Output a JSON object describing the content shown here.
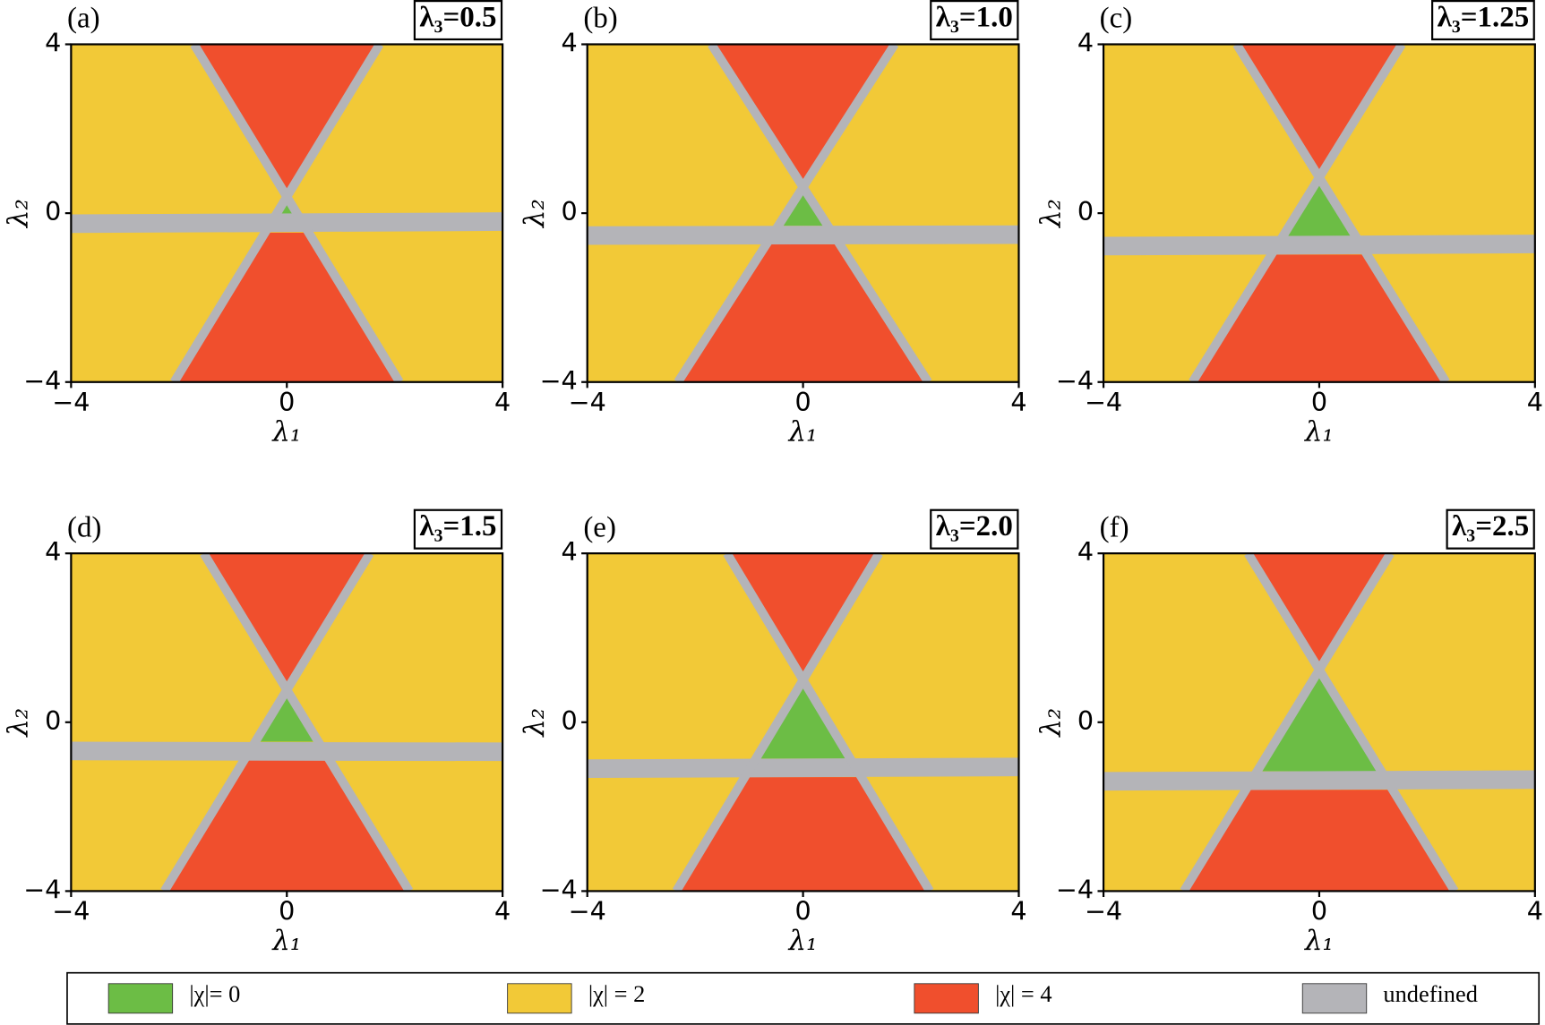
{
  "chart_data": [
    {
      "type": "phase",
      "panel": "(a)",
      "title": "λ₃=0.5",
      "xlabel": "λ₁",
      "ylabel": "λ₂",
      "xlim": [
        -4,
        4
      ],
      "ylim": [
        -4,
        4
      ],
      "xticks": [
        {
          "value": -4,
          "label": "−4"
        },
        0,
        4
      ],
      "yticks": [
        {
          "value": -4,
          "label": "−4"
        },
        0,
        4
      ],
      "regions": [
        {
          "color": "#f2c937",
          "points": [
            [
              -4,
              -4
            ],
            [
              4,
              -4
            ],
            [
              4,
              4
            ],
            [
              -4,
              4
            ]
          ]
        },
        {
          "color": "#f04f2d",
          "points": [
            [
              -1.72,
              4
            ],
            [
              1.72,
              4
            ],
            [
              0,
              0.38
            ]
          ]
        },
        {
          "color": "#f04f2d",
          "points": [
            [
              -0.4,
              -0.46
            ],
            [
              0.4,
              -0.46
            ],
            [
              2.09,
              -4
            ],
            [
              -2.09,
              -4
            ]
          ]
        },
        {
          "color": "#6cbd45",
          "points": [
            [
              0,
              0.38
            ],
            [
              0.2,
              -0.04
            ],
            [
              -0.2,
              -0.04
            ]
          ]
        },
        {
          "color": "#b4b4b8",
          "points": [
            [
              -4,
              -0.03
            ],
            [
              4,
              0.02
            ],
            [
              4,
              -0.42
            ],
            [
              -4,
              -0.47
            ]
          ]
        }
      ],
      "lines": [
        {
          "color": "#b4b4b8",
          "points": [
            [
              -1.72,
              4
            ],
            [
              2.09,
              -4
            ]
          ]
        },
        {
          "color": "#b4b4b8",
          "points": [
            [
              1.72,
              4
            ],
            [
              -2.09,
              -4
            ]
          ]
        }
      ]
    },
    {
      "type": "phase",
      "panel": "(b)",
      "title": "λ₃=1.0",
      "xlabel": "λ₁",
      "ylabel": "λ₂",
      "xlim": [
        -4,
        4
      ],
      "ylim": [
        -4,
        4
      ],
      "xticks": [
        {
          "value": -4,
          "label": "−4"
        },
        0,
        4
      ],
      "yticks": [
        {
          "value": -4,
          "label": "−4"
        },
        0,
        4
      ],
      "regions": [
        {
          "color": "#f2c937",
          "points": [
            [
              -4,
              -4
            ],
            [
              4,
              -4
            ],
            [
              4,
              4
            ],
            [
              -4,
              4
            ]
          ]
        },
        {
          "color": "#f04f2d",
          "points": [
            [
              -1.7,
              4
            ],
            [
              1.7,
              4
            ],
            [
              0,
              0.62
            ]
          ]
        },
        {
          "color": "#f04f2d",
          "points": [
            [
              -0.68,
              -0.74
            ],
            [
              0.68,
              -0.74
            ],
            [
              2.32,
              -4
            ],
            [
              -2.32,
              -4
            ]
          ]
        },
        {
          "color": "#6cbd45",
          "points": [
            [
              0,
              0.62
            ],
            [
              0.46,
              -0.3
            ],
            [
              -0.46,
              -0.3
            ]
          ]
        },
        {
          "color": "#b4b4b8",
          "points": [
            [
              -4,
              -0.31
            ],
            [
              4,
              -0.29
            ],
            [
              4,
              -0.73
            ],
            [
              -4,
              -0.75
            ]
          ]
        }
      ],
      "lines": [
        {
          "color": "#b4b4b8",
          "points": [
            [
              -1.7,
              4
            ],
            [
              2.32,
              -4
            ]
          ]
        },
        {
          "color": "#b4b4b8",
          "points": [
            [
              1.7,
              4
            ],
            [
              -2.32,
              -4
            ]
          ]
        }
      ]
    },
    {
      "type": "phase",
      "panel": "(c)",
      "title": "λ₃=1.25",
      "xlabel": "λ₁",
      "ylabel": "λ₂",
      "xlim": [
        -4,
        4
      ],
      "ylim": [
        -4,
        4
      ],
      "xticks": [
        {
          "value": -4,
          "label": "−4"
        },
        0,
        4
      ],
      "yticks": [
        {
          "value": -4,
          "label": "−4"
        },
        0,
        4
      ],
      "regions": [
        {
          "color": "#f2c937",
          "points": [
            [
              -4,
              -4
            ],
            [
              4,
              -4
            ],
            [
              4,
              4
            ],
            [
              -4,
              4
            ]
          ]
        },
        {
          "color": "#f04f2d",
          "points": [
            [
              -1.53,
              4
            ],
            [
              1.53,
              4
            ],
            [
              0,
              0.85
            ]
          ]
        },
        {
          "color": "#f04f2d",
          "points": [
            [
              -0.89,
              -0.98
            ],
            [
              0.89,
              -0.98
            ],
            [
              2.35,
              -4
            ],
            [
              -2.35,
              -4
            ]
          ]
        },
        {
          "color": "#6cbd45",
          "points": [
            [
              0,
              0.85
            ],
            [
              0.67,
              -0.54
            ],
            [
              -0.67,
              -0.54
            ]
          ]
        },
        {
          "color": "#b4b4b8",
          "points": [
            [
              -4,
              -0.56
            ],
            [
              4,
              -0.51
            ],
            [
              4,
              -0.95
            ],
            [
              -4,
              -1.0
            ]
          ]
        }
      ],
      "lines": [
        {
          "color": "#b4b4b8",
          "points": [
            [
              -1.53,
              4
            ],
            [
              2.35,
              -4
            ]
          ]
        },
        {
          "color": "#b4b4b8",
          "points": [
            [
              1.53,
              4
            ],
            [
              -2.35,
              -4
            ]
          ]
        }
      ]
    },
    {
      "type": "phase",
      "panel": "(d)",
      "title": "λ₃=1.5",
      "xlabel": "λ₁",
      "ylabel": "λ₂",
      "xlim": [
        -4,
        4
      ],
      "ylim": [
        -4,
        4
      ],
      "xticks": [
        {
          "value": -4,
          "label": "−4"
        },
        0,
        4
      ],
      "yticks": [
        {
          "value": -4,
          "label": "−4"
        },
        0,
        4
      ],
      "regions": [
        {
          "color": "#f2c937",
          "points": [
            [
              -4,
              -4
            ],
            [
              4,
              -4
            ],
            [
              4,
              4
            ],
            [
              -4,
              4
            ]
          ]
        },
        {
          "color": "#f04f2d",
          "points": [
            [
              -1.54,
              4
            ],
            [
              1.54,
              4
            ],
            [
              0,
              0.77
            ]
          ]
        },
        {
          "color": "#f04f2d",
          "points": [
            [
              -0.8,
              -0.9
            ],
            [
              0.8,
              -0.9
            ],
            [
              2.27,
              -4
            ],
            [
              -2.27,
              -4
            ]
          ]
        },
        {
          "color": "#6cbd45",
          "points": [
            [
              0,
              0.77
            ],
            [
              0.59,
              -0.46
            ],
            [
              -0.59,
              -0.46
            ]
          ]
        },
        {
          "color": "#b4b4b8",
          "points": [
            [
              -4,
              -0.46
            ],
            [
              4,
              -0.48
            ],
            [
              4,
              -0.92
            ],
            [
              -4,
              -0.9
            ]
          ]
        }
      ],
      "lines": [
        {
          "color": "#b4b4b8",
          "points": [
            [
              -1.54,
              4
            ],
            [
              2.27,
              -4
            ]
          ]
        },
        {
          "color": "#b4b4b8",
          "points": [
            [
              1.54,
              4
            ],
            [
              -2.27,
              -4
            ]
          ]
        }
      ]
    },
    {
      "type": "phase",
      "panel": "(e)",
      "title": "λ₃=2.0",
      "xlabel": "λ₁",
      "ylabel": "λ₂",
      "xlim": [
        -4,
        4
      ],
      "ylim": [
        -4,
        4
      ],
      "xticks": [
        {
          "value": -4,
          "label": "−4"
        },
        0,
        4
      ],
      "yticks": [
        {
          "value": -4,
          "label": "−4"
        },
        0,
        4
      ],
      "regions": [
        {
          "color": "#f2c937",
          "points": [
            [
              -4,
              -4
            ],
            [
              4,
              -4
            ],
            [
              4,
              4
            ],
            [
              -4,
              4
            ]
          ]
        },
        {
          "color": "#f04f2d",
          "points": [
            [
              -1.41,
              4
            ],
            [
              1.41,
              4
            ],
            [
              0,
              1.0
            ]
          ]
        },
        {
          "color": "#f04f2d",
          "points": [
            [
              -1.08,
              -1.3
            ],
            [
              1.08,
              -1.3
            ],
            [
              2.35,
              -4
            ],
            [
              -2.35,
              -4
            ]
          ]
        },
        {
          "color": "#6cbd45",
          "points": [
            [
              0,
              1.0
            ],
            [
              0.87,
              -0.86
            ],
            [
              -0.87,
              -0.86
            ]
          ]
        },
        {
          "color": "#b4b4b8",
          "points": [
            [
              -4,
              -0.88
            ],
            [
              4,
              -0.84
            ],
            [
              4,
              -1.28
            ],
            [
              -4,
              -1.32
            ]
          ]
        }
      ],
      "lines": [
        {
          "color": "#b4b4b8",
          "points": [
            [
              -1.41,
              4
            ],
            [
              2.35,
              -4
            ]
          ]
        },
        {
          "color": "#b4b4b8",
          "points": [
            [
              1.41,
              4
            ],
            [
              -2.35,
              -4
            ]
          ]
        }
      ]
    },
    {
      "type": "phase",
      "panel": "(f)",
      "title": "λ₃=2.5",
      "xlabel": "λ₁",
      "ylabel": "λ₂",
      "xlim": [
        -4,
        4
      ],
      "ylim": [
        -4,
        4
      ],
      "xticks": [
        {
          "value": -4,
          "label": "−4"
        },
        0,
        4
      ],
      "yticks": [
        {
          "value": -4,
          "label": "−4"
        },
        0,
        4
      ],
      "regions": [
        {
          "color": "#f2c937",
          "points": [
            [
              -4,
              -4
            ],
            [
              4,
              -4
            ],
            [
              4,
              4
            ],
            [
              -4,
              4
            ]
          ]
        },
        {
          "color": "#f04f2d",
          "points": [
            [
              -1.32,
              4
            ],
            [
              1.32,
              4
            ],
            [
              0,
              1.24
            ]
          ]
        },
        {
          "color": "#f04f2d",
          "points": [
            [
              -1.36,
              -1.6
            ],
            [
              1.36,
              -1.6
            ],
            [
              2.51,
              -4
            ],
            [
              -2.51,
              -4
            ]
          ]
        },
        {
          "color": "#6cbd45",
          "points": [
            [
              0,
              1.24
            ],
            [
              1.15,
              -1.16
            ],
            [
              -1.15,
              -1.16
            ]
          ]
        },
        {
          "color": "#b4b4b8",
          "points": [
            [
              -4,
              -1.18
            ],
            [
              4,
              -1.14
            ],
            [
              4,
              -1.58
            ],
            [
              -4,
              -1.62
            ]
          ]
        }
      ],
      "lines": [
        {
          "color": "#b4b4b8",
          "points": [
            [
              -1.32,
              4
            ],
            [
              2.51,
              -4
            ]
          ]
        },
        {
          "color": "#b4b4b8",
          "points": [
            [
              1.32,
              4
            ],
            [
              -2.51,
              -4
            ]
          ]
        }
      ]
    }
  ],
  "legend": {
    "items": [
      {
        "name": "|χ|= 0",
        "color": "#6cbd45"
      },
      {
        "name": "|χ| = 2",
        "color": "#f2c937"
      },
      {
        "name": "|χ| = 4",
        "color": "#f04f2d"
      },
      {
        "name": "undefined",
        "color": "#b4b4b8"
      }
    ]
  }
}
